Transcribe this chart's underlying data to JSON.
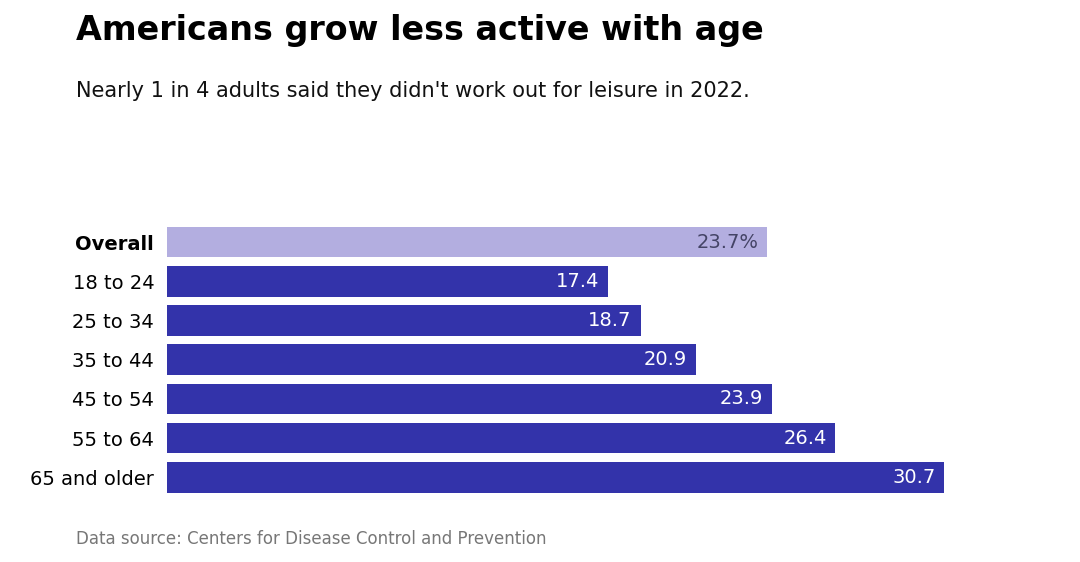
{
  "title": "Americans grow less active with age",
  "subtitle": "Nearly 1 in 4 adults said they didn't work out for leisure in 2022.",
  "footnote": "Data source: Centers for Disease Control and Prevention",
  "categories": [
    "Overall",
    "18 to 24",
    "25 to 34",
    "35 to 44",
    "45 to 54",
    "55 to 64",
    "65 and older"
  ],
  "values": [
    23.7,
    17.4,
    18.7,
    20.9,
    23.9,
    26.4,
    30.7
  ],
  "labels": [
    "23.7%",
    "17.4",
    "18.7",
    "20.9",
    "23.9",
    "26.4",
    "30.7"
  ],
  "bar_colors": [
    "#b3aee0",
    "#3333aa",
    "#3333aa",
    "#3333aa",
    "#3333aa",
    "#3333aa",
    "#3333aa"
  ],
  "label_colors": [
    "#444466",
    "#ffffff",
    "#ffffff",
    "#ffffff",
    "#ffffff",
    "#ffffff",
    "#ffffff"
  ],
  "background_color": "#ffffff",
  "title_fontsize": 24,
  "subtitle_fontsize": 15,
  "footnote_fontsize": 12,
  "label_fontsize": 14,
  "category_fontsize": 14,
  "xlim": [
    0,
    35
  ]
}
